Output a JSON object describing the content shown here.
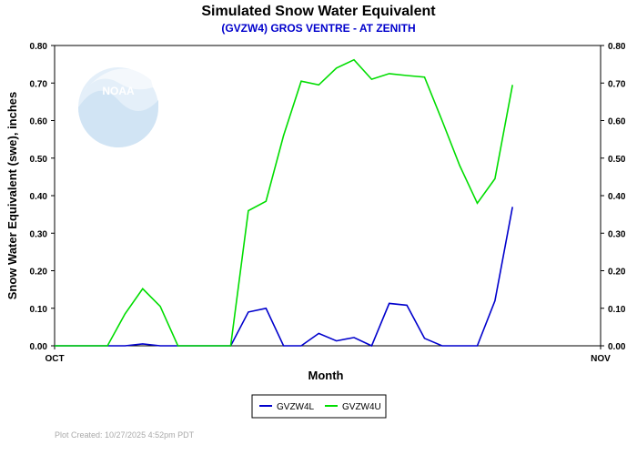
{
  "chart_data": {
    "type": "line",
    "title": "Simulated Snow Water Equivalent",
    "subtitle": "(GVZW4) GROS VENTRE - AT ZENITH",
    "xlabel": "Month",
    "ylabel": "Snow Water Equivalent (swe),  inches",
    "x_tick_labels": [
      "OCT",
      "NOV"
    ],
    "x_range_days": [
      0,
      31
    ],
    "ylim": [
      0,
      0.8
    ],
    "y_ticks": [
      "0.00",
      "0.10",
      "0.20",
      "0.30",
      "0.40",
      "0.50",
      "0.60",
      "0.70",
      "0.80"
    ],
    "grid": false,
    "legend_position": "bottom-center",
    "series": [
      {
        "name": "GVZW4L",
        "color": "#0000cc",
        "x": [
          0,
          1,
          2,
          3,
          4,
          5,
          6,
          7,
          8,
          9,
          10,
          11,
          12,
          13,
          14,
          15,
          16,
          17,
          18,
          19,
          20,
          21,
          22,
          23,
          24,
          25
        ],
        "values": [
          0,
          0,
          0,
          0,
          0,
          0.005,
          0,
          0,
          0,
          0,
          0,
          0.09,
          0.1,
          0,
          0,
          0.033,
          0.013,
          0.022,
          0,
          0.113,
          0.108,
          0.02,
          0,
          0,
          0,
          0.12
        ]
      },
      {
        "name": "GVZW4U",
        "color": "#00dd00",
        "x": [
          0,
          1,
          2,
          3,
          4,
          5,
          6,
          7,
          8,
          9,
          10,
          11,
          12,
          13,
          14,
          15,
          16,
          17,
          18,
          19,
          20,
          21,
          22,
          23,
          24,
          25
        ],
        "values": [
          0,
          0,
          0,
          0,
          0.085,
          0.152,
          0.105,
          0,
          0,
          0,
          0,
          0.36,
          0.385,
          0.56,
          0.705,
          0.695,
          0.74,
          0.762,
          0.71,
          0.725,
          0.72,
          0.716,
          0.6,
          0.48,
          0.38,
          0.445
        ]
      }
    ],
    "series_tail": [
      {
        "name": "GVZW4L",
        "x": [
          26
        ],
        "values": [
          0.37
        ]
      },
      {
        "name": "GVZW4U",
        "x": [
          26
        ],
        "values": [
          0.695
        ]
      }
    ]
  },
  "footer": {
    "created": "Plot Created:  10/27/2025 4:52pm PDT"
  },
  "logo": {
    "text": "NOAA"
  }
}
